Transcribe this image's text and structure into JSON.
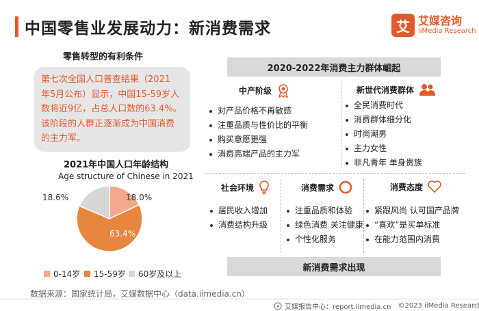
{
  "header": {
    "title": "中国零售业发展动力：新消费需求"
  },
  "logo": {
    "mark": "艾",
    "name_cn": "艾媒咨询",
    "name_en": "iiMedia Research"
  },
  "left": {
    "conditions_title": "零售转型的有利条件",
    "census_lines": [
      "第七次全国人口普查结果（2021",
      "年5月公布）显示，中国15-59岁人",
      "数将近9亿，占总人口数的63.4%。",
      "该阶段的人群正逐渐成为中国消费",
      "的主力军。"
    ],
    "age_title": "2021年中国人口年龄结构",
    "age_subtitle": "Age structure of Chinese in 2021"
  },
  "chart_data": {
    "type": "pie",
    "title": "2021年中国人口年龄结构",
    "subtitle": "Age structure of Chinese in 2021",
    "slices": [
      {
        "label": "0-14岁",
        "value": 18.0,
        "display": "18.0%",
        "color": "#f4a98c"
      },
      {
        "label": "15-59岁",
        "value": 63.4,
        "display": "63.4%",
        "color": "#e8853f"
      },
      {
        "label": "60岁及以上",
        "value": 18.6,
        "display": "18.6%",
        "color": "#d6d6d6"
      }
    ],
    "legend_position": "bottom"
  },
  "right": {
    "top_banner": "2020-2022年消费主力群体崛起",
    "middle_class": {
      "title": "中产阶级",
      "items": [
        "对产品价格不再敏感",
        "注重品质与性价比的平衡",
        "购买意愿更强",
        "消费高端产品的主力军"
      ]
    },
    "new_gen": {
      "title": "新世代消费群体",
      "items": [
        "全民消费时代",
        "消费群体细分化",
        "时尚潮男",
        "主力女性",
        "非凡青年 单身贵族"
      ]
    },
    "social": {
      "title": "社会环境",
      "items": [
        "居民收入增加",
        "消费结构升级"
      ]
    },
    "demand": {
      "title": "消费需求",
      "items": [
        "注重品质和体验",
        "绿色消费 关注健康",
        "个性化服务"
      ]
    },
    "attitude": {
      "title": "消费态度",
      "items": [
        "紧跟风尚 认可国产品牌",
        "“喜欢”是买单标准",
        "在能力范围内消费"
      ]
    },
    "bottom_banner": "新消费需求出现"
  },
  "source": "数据来源：国家统计局，艾媒数据中心（data.iimedia.cn）",
  "footer": {
    "brand": "艾媒报告中心：report.iimedia.cn",
    "copyright": "©2023  iiMedia Research  Inc"
  },
  "colors": {
    "accent": "#e05a2b",
    "box": "#e6e6e6",
    "banner": "#d9d9d9"
  }
}
